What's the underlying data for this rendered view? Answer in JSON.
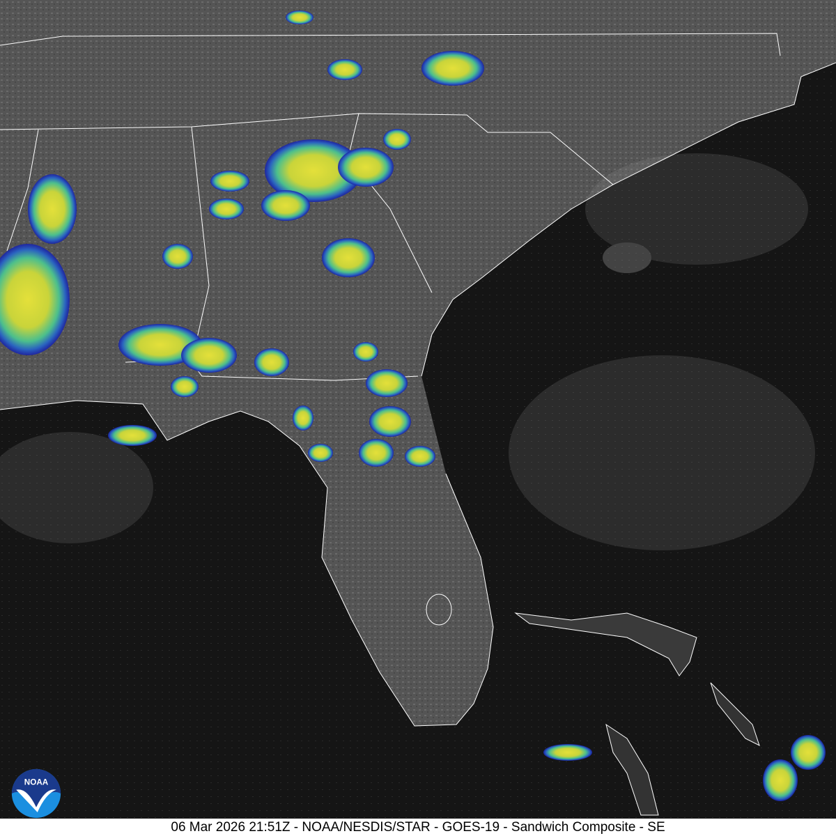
{
  "caption": "06 Mar 2026 21:51Z - NOAA/NESDIS/STAR - GOES-19 - Sandwich Composite - SE",
  "logo": {
    "text": "NOAA",
    "colors": {
      "top": "#1a3a8c",
      "bottom": "#1b8fe0"
    }
  },
  "colors": {
    "land": "#5a5a5a",
    "ocean": "#141414",
    "storm_core": "#e8e23a",
    "storm_mid": "#4ec38a",
    "storm_edge": "#1a2fb0",
    "borders": "#ffffff"
  }
}
